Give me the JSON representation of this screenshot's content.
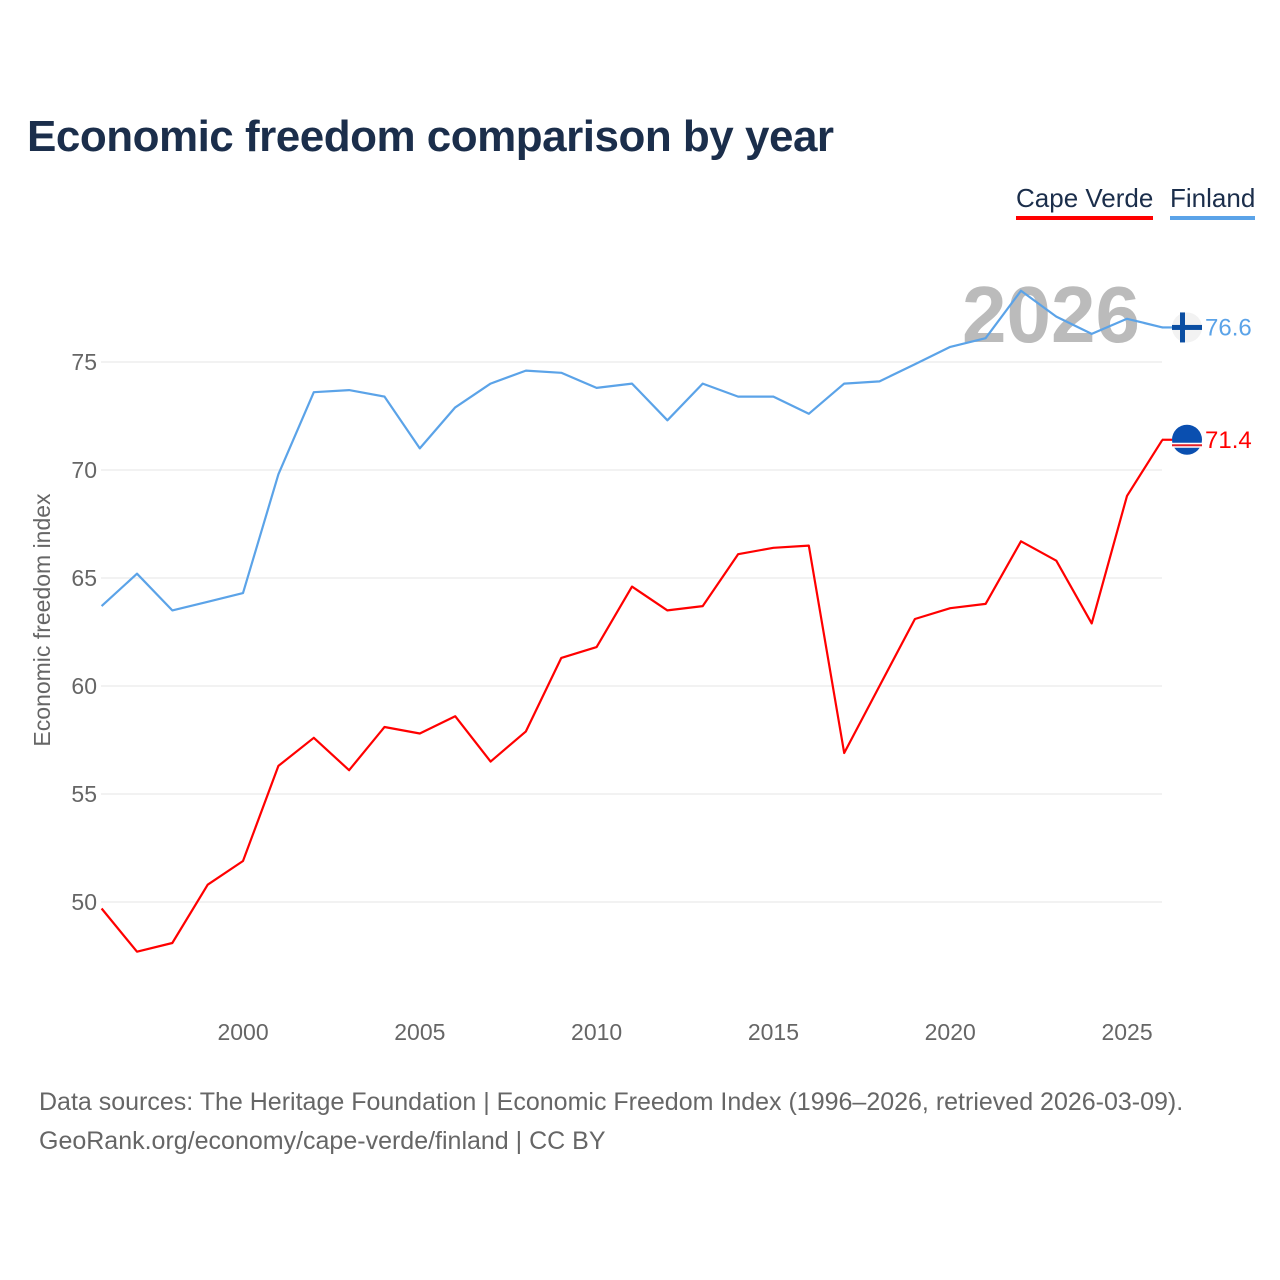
{
  "chart_data": {
    "type": "line",
    "title": "Economic freedom comparison by year",
    "xlabel": "",
    "ylabel": "Economic freedom index",
    "year_label": "2026",
    "xlim": [
      1996,
      2026
    ],
    "ylim": [
      45,
      79
    ],
    "x_ticks": [
      2000,
      2005,
      2010,
      2015,
      2020,
      2025
    ],
    "y_ticks": [
      50,
      55,
      60,
      65,
      70,
      75
    ],
    "grid": true,
    "legend_position": "top-right",
    "x": [
      1996,
      1997,
      1998,
      1999,
      2000,
      2001,
      2002,
      2003,
      2004,
      2005,
      2006,
      2007,
      2008,
      2009,
      2010,
      2011,
      2012,
      2013,
      2014,
      2015,
      2016,
      2017,
      2018,
      2019,
      2020,
      2021,
      2022,
      2023,
      2024,
      2025,
      2026
    ],
    "series": [
      {
        "name": "Cape Verde",
        "color": "#ff0000",
        "end_label": "71.4",
        "values": [
          49.7,
          47.7,
          48.1,
          50.8,
          51.9,
          56.3,
          57.6,
          56.1,
          58.1,
          57.8,
          58.6,
          56.5,
          57.9,
          61.3,
          61.8,
          64.6,
          63.5,
          63.7,
          66.1,
          66.4,
          66.5,
          56.9,
          60.0,
          63.1,
          63.6,
          63.8,
          66.7,
          65.8,
          62.9,
          68.8,
          71.4
        ]
      },
      {
        "name": "Finland",
        "color": "#5ba3e8",
        "end_label": "76.6",
        "values": [
          63.7,
          65.2,
          63.5,
          63.9,
          64.3,
          69.8,
          73.6,
          73.7,
          73.4,
          71.0,
          72.9,
          74.0,
          74.6,
          74.5,
          73.8,
          74.0,
          72.3,
          74.0,
          73.4,
          73.4,
          72.6,
          74.0,
          74.1,
          74.9,
          75.7,
          76.1,
          78.3,
          77.1,
          76.3,
          77.0,
          76.6
        ]
      }
    ]
  },
  "sources": {
    "line1": "Data sources: The Heritage Foundation | Economic Freedom Index (1996–2026, retrieved 2026-03-09).",
    "line2": "GeoRank.org/economy/cape-verde/finland | CC BY"
  }
}
